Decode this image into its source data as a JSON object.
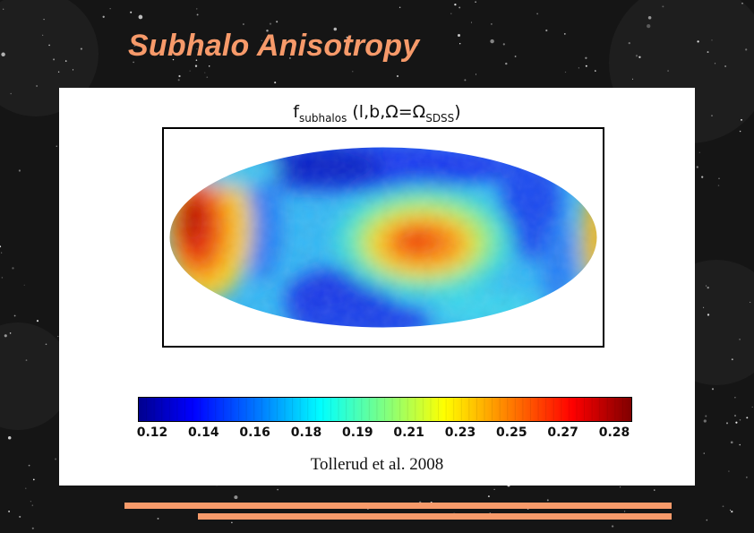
{
  "slide": {
    "title": "Subhalo Anisotropy",
    "credit": "Tollerud et al. 2008",
    "accent_color": "#f79a6a"
  },
  "map": {
    "title_prefix": "f",
    "title_sub1": "subhalos",
    "title_mid": " (l,b,Ω=Ω",
    "title_sub2": "SDSS",
    "title_suffix": ")",
    "projection": "mollweide"
  },
  "colorbar": {
    "colormap": "jet",
    "ticks": [
      "0.12",
      "0.14",
      "0.16",
      "0.18",
      "0.19",
      "0.21",
      "0.23",
      "0.25",
      "0.27",
      "0.28"
    ]
  }
}
